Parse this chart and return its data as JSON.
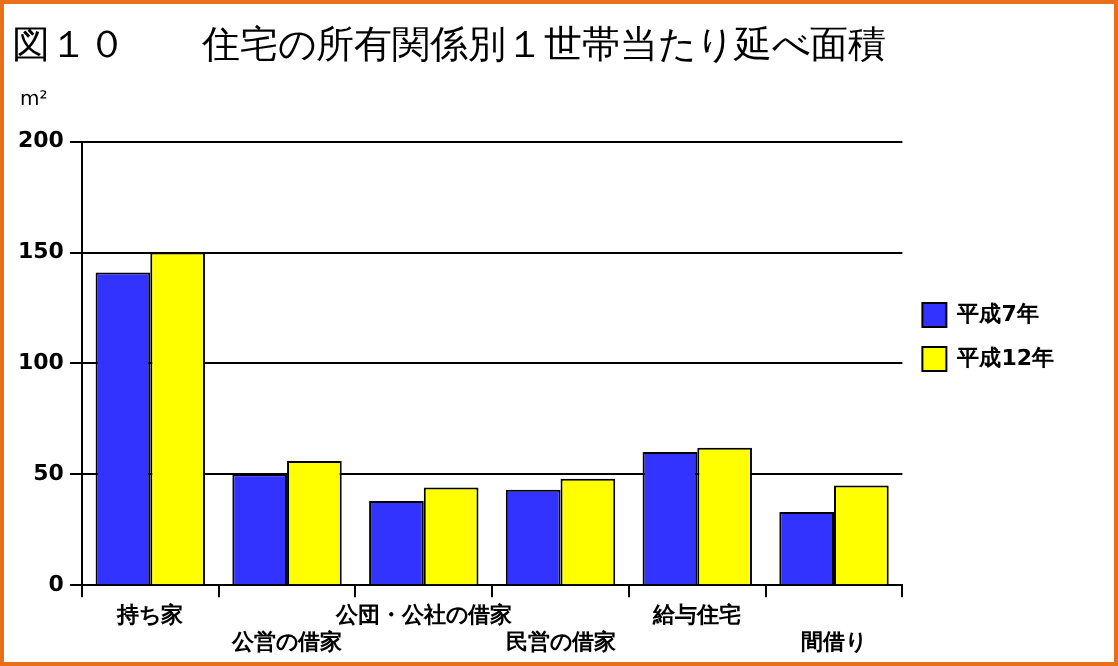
{
  "chart_data": {
    "type": "bar",
    "title": "図１０　　住宅の所有関係別１世帯当たり延べ面積",
    "ylabel": "m²",
    "categories": [
      "持ち家",
      "公営の借家",
      "公団・公社の借家",
      "民営の借家",
      "給与住宅",
      "間借り"
    ],
    "series": [
      {
        "name": "平成7年",
        "color": "#3333ff",
        "values": [
          141,
          50,
          38,
          43,
          60,
          33
        ]
      },
      {
        "name": "平成12年",
        "color": "#ffff00",
        "values": [
          150,
          56,
          44,
          48,
          62,
          45
        ]
      }
    ],
    "ylim": [
      0,
      200
    ],
    "yticks": [
      0,
      50,
      100,
      150,
      200
    ],
    "grid": "y",
    "legend": "right"
  }
}
